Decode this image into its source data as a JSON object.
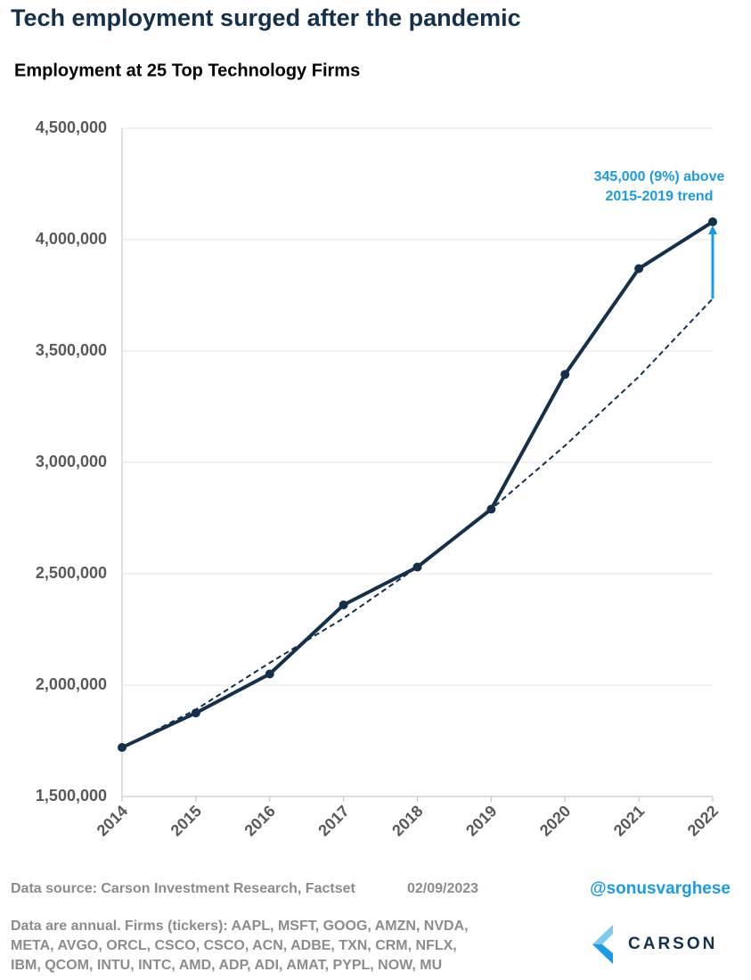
{
  "chart_data": {
    "type": "line",
    "title": "Tech employment surged after the pandemic",
    "subtitle": "Employment at 25 Top Technology Firms",
    "categories": [
      "2014",
      "2015",
      "2016",
      "2017",
      "2018",
      "2019",
      "2020",
      "2021",
      "2022"
    ],
    "series": [
      {
        "color": "#14304d",
        "dashed": false,
        "markers": true,
        "values": [
          1720000,
          1875000,
          2050000,
          2360000,
          2530000,
          2790000,
          3395000,
          3870000,
          4080000
        ]
      },
      {
        "color": "#14304d",
        "dashed": true,
        "markers": false,
        "values": [
          1720000,
          1890000,
          2100000,
          2300000,
          2530000,
          2790000,
          3075000,
          3385000,
          3735000
        ]
      }
    ],
    "ylim": [
      1500000,
      4500000
    ],
    "yticks": [
      {
        "value": 1500000,
        "label": "1,500,000"
      },
      {
        "value": 2000000,
        "label": "2,000,000"
      },
      {
        "value": 2500000,
        "label": "2,500,000"
      },
      {
        "value": 3000000,
        "label": "3,000,000"
      },
      {
        "value": 3500000,
        "label": "3,500,000"
      },
      {
        "value": 4000000,
        "label": "4,000,000"
      },
      {
        "value": 4500000,
        "label": "4,500,000"
      }
    ],
    "grid": true,
    "annotation": {
      "lines": [
        "345,000 (9%) above",
        "2015-2019 trend"
      ],
      "color": "#1a9be6"
    }
  },
  "footer": {
    "source": "Data source: Carson Investment Research, Factset",
    "date": "02/09/2023",
    "handle": "@sonusvarghese",
    "notes": [
      "Data are annual. Firms (tickers): AAPL, MSFT, GOOG, AMZN, NVDA,",
      "META, AVGO, ORCL, CSCO, CSCO, ACN, ADBE, TXN, CRM, NFLX,",
      "IBM, QCOM, INTU, INTC, AMD, ADP, ADI, AMAT, PYPL, NOW, MU"
    ],
    "logo": "CARSON"
  }
}
